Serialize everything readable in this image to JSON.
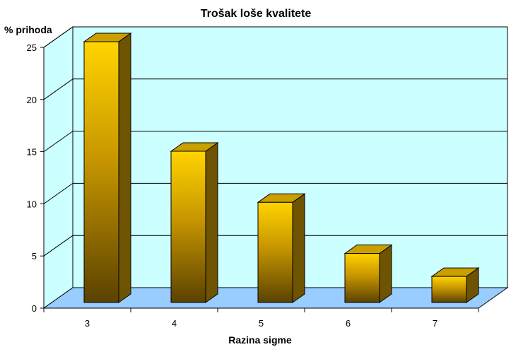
{
  "chart_data": {
    "type": "bar",
    "title": "Trošak loše kvalitete",
    "ylabel": "% prihoda",
    "xlabel": "Razina sigme",
    "categories": [
      "3",
      "4",
      "5",
      "6",
      "7"
    ],
    "values": [
      25,
      14.5,
      9.6,
      4.7,
      2.5
    ],
    "ylim": [
      0,
      25
    ],
    "yticks": [
      "0",
      "5",
      "10",
      "15",
      "20",
      "25"
    ],
    "grid": true,
    "legend": "none",
    "colors": {
      "bar_front_top": "#ffd400",
      "bar_front_bottom": "#5a4200",
      "bar_side": "#6e5300",
      "bar_top": "#caa000",
      "wall": "#ccffff",
      "floor": "#99ccff",
      "grid": "#000000"
    }
  }
}
